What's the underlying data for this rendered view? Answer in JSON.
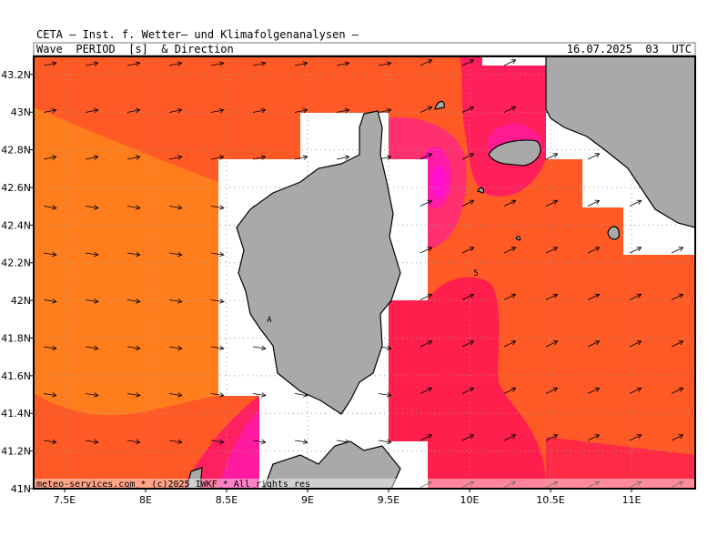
{
  "header": {
    "source": "CETA – Inst. f. Wetter– und Klimafolgenanalysen –",
    "title": "Wave  PERIOD  [s]  & Direction",
    "valid_time": "16.07.2025  03  UTC"
  },
  "map": {
    "lon_ticks": [
      {
        "value": 7.5,
        "label": "7.5E"
      },
      {
        "value": 8,
        "label": "8E"
      },
      {
        "value": 8.5,
        "label": "8.5E"
      },
      {
        "value": 9,
        "label": "9E"
      },
      {
        "value": 9.5,
        "label": "9.5E"
      },
      {
        "value": 10,
        "label": "10E"
      },
      {
        "value": 10.5,
        "label": "10.5E"
      },
      {
        "value": 11,
        "label": "11E"
      }
    ],
    "lat_ticks": [
      {
        "value": 41,
        "label": "41N"
      },
      {
        "value": 41.2,
        "label": "41.2N"
      },
      {
        "value": 41.4,
        "label": "41.4N"
      },
      {
        "value": 41.6,
        "label": "41.6N"
      },
      {
        "value": 41.8,
        "label": "41.8N"
      },
      {
        "value": 42,
        "label": "42N"
      },
      {
        "value": 42.2,
        "label": "42.2N"
      },
      {
        "value": 42.4,
        "label": "42.4N"
      },
      {
        "value": 42.6,
        "label": "42.6N"
      },
      {
        "value": 42.8,
        "label": "42.8N"
      },
      {
        "value": 43,
        "label": "43N"
      },
      {
        "value": 43.2,
        "label": "43.2N"
      }
    ],
    "contour_label": "5",
    "marker_label": "A"
  },
  "footer": "meteo-services.com * (c)2025 IWKF * All rights res"
}
